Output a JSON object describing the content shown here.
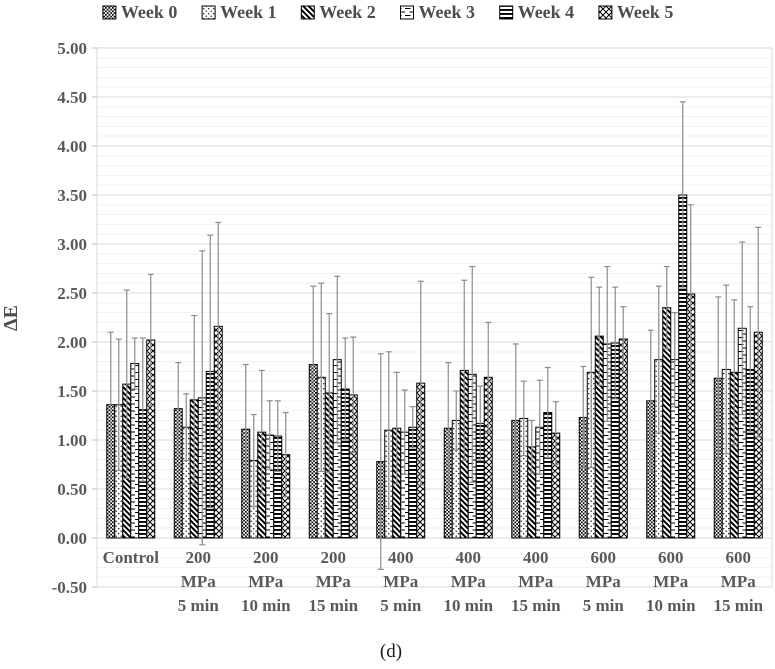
{
  "figure": {
    "caption": "(d)"
  },
  "chart_data": {
    "type": "bar",
    "title": "",
    "ylabel": "ΔE",
    "xlabel": "",
    "ylim": [
      -0.5,
      5.0
    ],
    "y_major_step": 0.5,
    "y_minor_step": 0.1,
    "grid": "horizontal major (0.50) + faint minor (0.10)",
    "legend_position": "top",
    "error_bars": "symmetric whiskers with caps; upper end listed in error_top",
    "y_tick_labels": [
      "5.00",
      "4.50",
      "4.00",
      "3.50",
      "3.00",
      "2.50",
      "2.00",
      "1.50",
      "1.00",
      "0.50",
      "0.00",
      "-0.50"
    ],
    "categories": [
      [
        "Control"
      ],
      [
        "200",
        "MPa",
        "5 min"
      ],
      [
        "200",
        "MPa",
        "10 min"
      ],
      [
        "200",
        "MPa",
        "15 min"
      ],
      [
        "400",
        "MPa",
        "5 min"
      ],
      [
        "400",
        "MPa",
        "10 min"
      ],
      [
        "400",
        "MPa",
        "15 min"
      ],
      [
        "600",
        "MPa",
        "5 min"
      ],
      [
        "600",
        "MPa",
        "10 min"
      ],
      [
        "600",
        "MPa",
        "15 min"
      ]
    ],
    "series": [
      {
        "name": "Week 0",
        "pattern": "dense-dot-grid",
        "values": [
          1.36,
          1.32,
          1.11,
          1.77,
          0.78,
          1.12,
          1.2,
          1.23,
          1.4,
          1.63
        ],
        "error_top": [
          2.1,
          1.79,
          1.77,
          2.57,
          1.88,
          1.79,
          1.98,
          1.75,
          2.12,
          2.46
        ]
      },
      {
        "name": "Week 1",
        "pattern": "sparse-dots",
        "values": [
          1.36,
          1.13,
          0.79,
          1.64,
          1.1,
          1.2,
          1.22,
          1.69,
          1.82,
          1.72
        ],
        "error_top": [
          2.03,
          1.47,
          1.26,
          2.6,
          1.9,
          1.5,
          1.6,
          2.66,
          2.57,
          2.58
        ]
      },
      {
        "name": "Week 2",
        "pattern": "diagonal-stripes",
        "values": [
          1.57,
          1.41,
          1.08,
          1.48,
          1.12,
          1.71,
          0.93,
          2.06,
          2.35,
          1.69
        ],
        "error_top": [
          2.53,
          2.27,
          1.71,
          2.29,
          1.69,
          2.63,
          1.2,
          2.56,
          2.77,
          2.43
        ]
      },
      {
        "name": "Week 3",
        "pattern": "dashed-horizontal",
        "values": [
          1.78,
          1.43,
          1.05,
          1.82,
          1.08,
          1.67,
          1.13,
          1.98,
          1.82,
          2.14
        ],
        "error_top": [
          2.04,
          2.93,
          1.4,
          2.67,
          1.51,
          2.77,
          1.61,
          2.77,
          2.3,
          3.02
        ]
      },
      {
        "name": "Week 4",
        "pattern": "bold-horizontal-stripes",
        "values": [
          1.31,
          1.7,
          1.04,
          1.52,
          1.13,
          1.17,
          1.28,
          1.99,
          3.5,
          1.72
        ],
        "error_top": [
          2.04,
          3.09,
          1.4,
          2.04,
          1.34,
          1.55,
          1.74,
          2.56,
          4.45,
          2.36
        ]
      },
      {
        "name": "Week 5",
        "pattern": "diagonal-crosshatch",
        "values": [
          2.02,
          2.16,
          0.85,
          1.46,
          1.58,
          1.64,
          1.07,
          2.03,
          2.49,
          2.1
        ],
        "error_top": [
          2.69,
          3.22,
          1.28,
          2.05,
          2.62,
          2.2,
          1.39,
          2.36,
          3.4,
          3.17
        ]
      }
    ],
    "caption": "(d)",
    "colors": {
      "text": "#595959",
      "grid_major": "#d9d9d9",
      "grid_minor": "#f2f2f2",
      "error_bar": "#8c8c8c",
      "bar_stroke": "#000000",
      "bar_fill_base": "#ffffff",
      "caption_text": "#1a1a1a"
    }
  }
}
